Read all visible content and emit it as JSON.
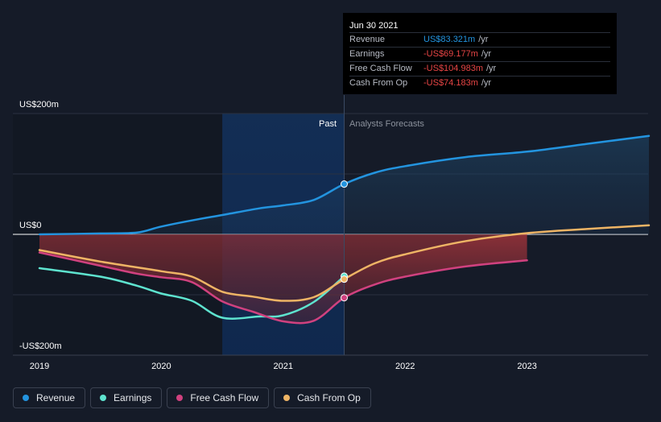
{
  "chart_data": {
    "type": "area",
    "title": "",
    "y_unit_labels": [
      "US$200m",
      "US$0",
      "-US$200m"
    ],
    "ylim": [
      -200,
      200
    ],
    "xlim": [
      2019,
      2024
    ],
    "x_ticks": [
      "2019",
      "2020",
      "2021",
      "2022",
      "2023"
    ],
    "x_tick_values": [
      2019,
      2020,
      2021,
      2022,
      2023
    ],
    "past_label": "Past",
    "forecast_label": "Analysts Forecasts",
    "divider_x": 2021.5,
    "highlight_range": [
      2020.5,
      2021.5
    ],
    "series": [
      {
        "name": "Revenue",
        "color": "#2394df",
        "points": [
          [
            2019,
            0
          ],
          [
            2019.5,
            1.5
          ],
          [
            2019.8,
            3
          ],
          [
            2020,
            13
          ],
          [
            2020.3,
            25
          ],
          [
            2020.5,
            32
          ],
          [
            2020.8,
            43
          ],
          [
            2021,
            48
          ],
          [
            2021.25,
            57
          ],
          [
            2021.5,
            83.321
          ],
          [
            2021.75,
            102
          ],
          [
            2022,
            113
          ],
          [
            2022.5,
            128
          ],
          [
            2023,
            137
          ],
          [
            2023.5,
            150
          ],
          [
            2024,
            163
          ]
        ]
      },
      {
        "name": "Earnings",
        "color": "#5ee3cf",
        "points": [
          [
            2019,
            -56
          ],
          [
            2019.5,
            -70
          ],
          [
            2019.8,
            -85
          ],
          [
            2020,
            -98
          ],
          [
            2020.25,
            -110
          ],
          [
            2020.5,
            -138
          ],
          [
            2020.8,
            -136
          ],
          [
            2021,
            -134
          ],
          [
            2021.25,
            -112
          ],
          [
            2021.5,
            -69.177
          ]
        ]
      },
      {
        "name": "Free Cash Flow",
        "color": "#d0417f",
        "points": [
          [
            2019,
            -30
          ],
          [
            2019.5,
            -52
          ],
          [
            2019.8,
            -65
          ],
          [
            2020,
            -71
          ],
          [
            2020.25,
            -79
          ],
          [
            2020.5,
            -111
          ],
          [
            2020.75,
            -128
          ],
          [
            2021,
            -144
          ],
          [
            2021.25,
            -143
          ],
          [
            2021.5,
            -104.983
          ],
          [
            2021.75,
            -83
          ],
          [
            2022,
            -70
          ],
          [
            2022.5,
            -53
          ],
          [
            2023,
            -43
          ]
        ]
      },
      {
        "name": "Cash From Op",
        "color": "#eeb465",
        "points": [
          [
            2019,
            -26
          ],
          [
            2019.5,
            -45
          ],
          [
            2020,
            -61
          ],
          [
            2020.25,
            -70
          ],
          [
            2020.5,
            -95
          ],
          [
            2020.75,
            -103
          ],
          [
            2021,
            -110
          ],
          [
            2021.25,
            -104
          ],
          [
            2021.5,
            -74.183
          ],
          [
            2021.75,
            -48
          ],
          [
            2022,
            -33
          ],
          [
            2022.5,
            -11
          ],
          [
            2023,
            2
          ],
          [
            2023.5,
            9
          ],
          [
            2024,
            15
          ]
        ]
      }
    ],
    "markers_at": 2021.5
  },
  "tooltip": {
    "date": "Jun 30 2021",
    "rows": [
      {
        "label": "Revenue",
        "value": "US$83.321m",
        "unit": "/yr",
        "tone": "pos"
      },
      {
        "label": "Earnings",
        "value": "-US$69.177m",
        "unit": "/yr",
        "tone": "neg"
      },
      {
        "label": "Free Cash Flow",
        "value": "-US$104.983m",
        "unit": "/yr",
        "tone": "neg"
      },
      {
        "label": "Cash From Op",
        "value": "-US$74.183m",
        "unit": "/yr",
        "tone": "neg"
      }
    ]
  },
  "legend": [
    {
      "label": "Revenue",
      "color": "#2394df"
    },
    {
      "label": "Earnings",
      "color": "#5ee3cf"
    },
    {
      "label": "Free Cash Flow",
      "color": "#d0417f"
    },
    {
      "label": "Cash From Op",
      "color": "#eeb465"
    }
  ],
  "colors": {
    "background": "#151b28",
    "grid": "#2a3140",
    "axis_text": "#ffffff",
    "zero_line": "#ffffff"
  }
}
